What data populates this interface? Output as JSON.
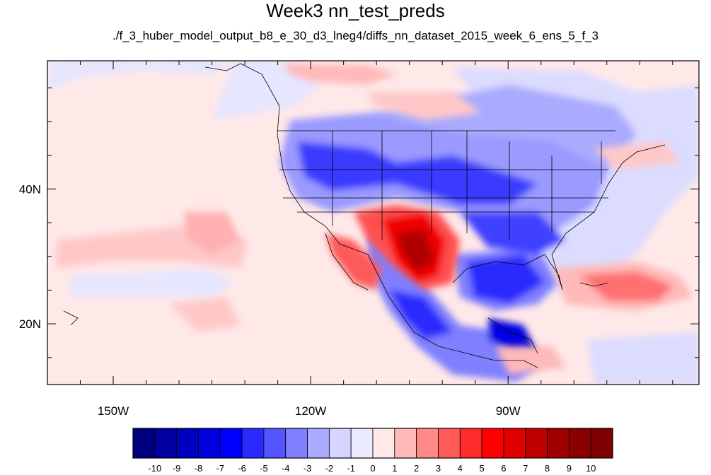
{
  "title": "Week3 nn_test_preds",
  "subtitle": "./f_3_huber_model_output_b8_e_30_d3_lneg4/diffs_nn_dataset_2015_week_6_ens_5_f_3",
  "map": {
    "lon_range": [
      -160,
      -61
    ],
    "lat_range": [
      11,
      59
    ],
    "x_ticks": [
      {
        "lon": -150,
        "label": "150W"
      },
      {
        "lon": -120,
        "label": "120W"
      },
      {
        "lon": -90,
        "label": "90W"
      }
    ],
    "y_ticks": [
      {
        "lat": 40,
        "label": "40N"
      },
      {
        "lat": 20,
        "label": "20N"
      }
    ]
  },
  "colorbar": {
    "levels": [
      "-10",
      "-9",
      "-8",
      "-7",
      "-6",
      "-5",
      "-4",
      "-3",
      "-2",
      "-1",
      "0",
      "1",
      "2",
      "3",
      "4",
      "5",
      "6",
      "7",
      "8",
      "9",
      "10"
    ],
    "colors": [
      "#00007f",
      "#0000a0",
      "#0000c0",
      "#0000e0",
      "#0000ff",
      "#2a2aff",
      "#5555ff",
      "#7f7fff",
      "#aaaaff",
      "#d5d5ff",
      "#ebebff",
      "#ffe8e8",
      "#ffb9b9",
      "#ff8888",
      "#ff5a5a",
      "#ff2a2a",
      "#ff0000",
      "#e00000",
      "#c00000",
      "#a00000",
      "#880000",
      "#7f0000"
    ]
  }
}
